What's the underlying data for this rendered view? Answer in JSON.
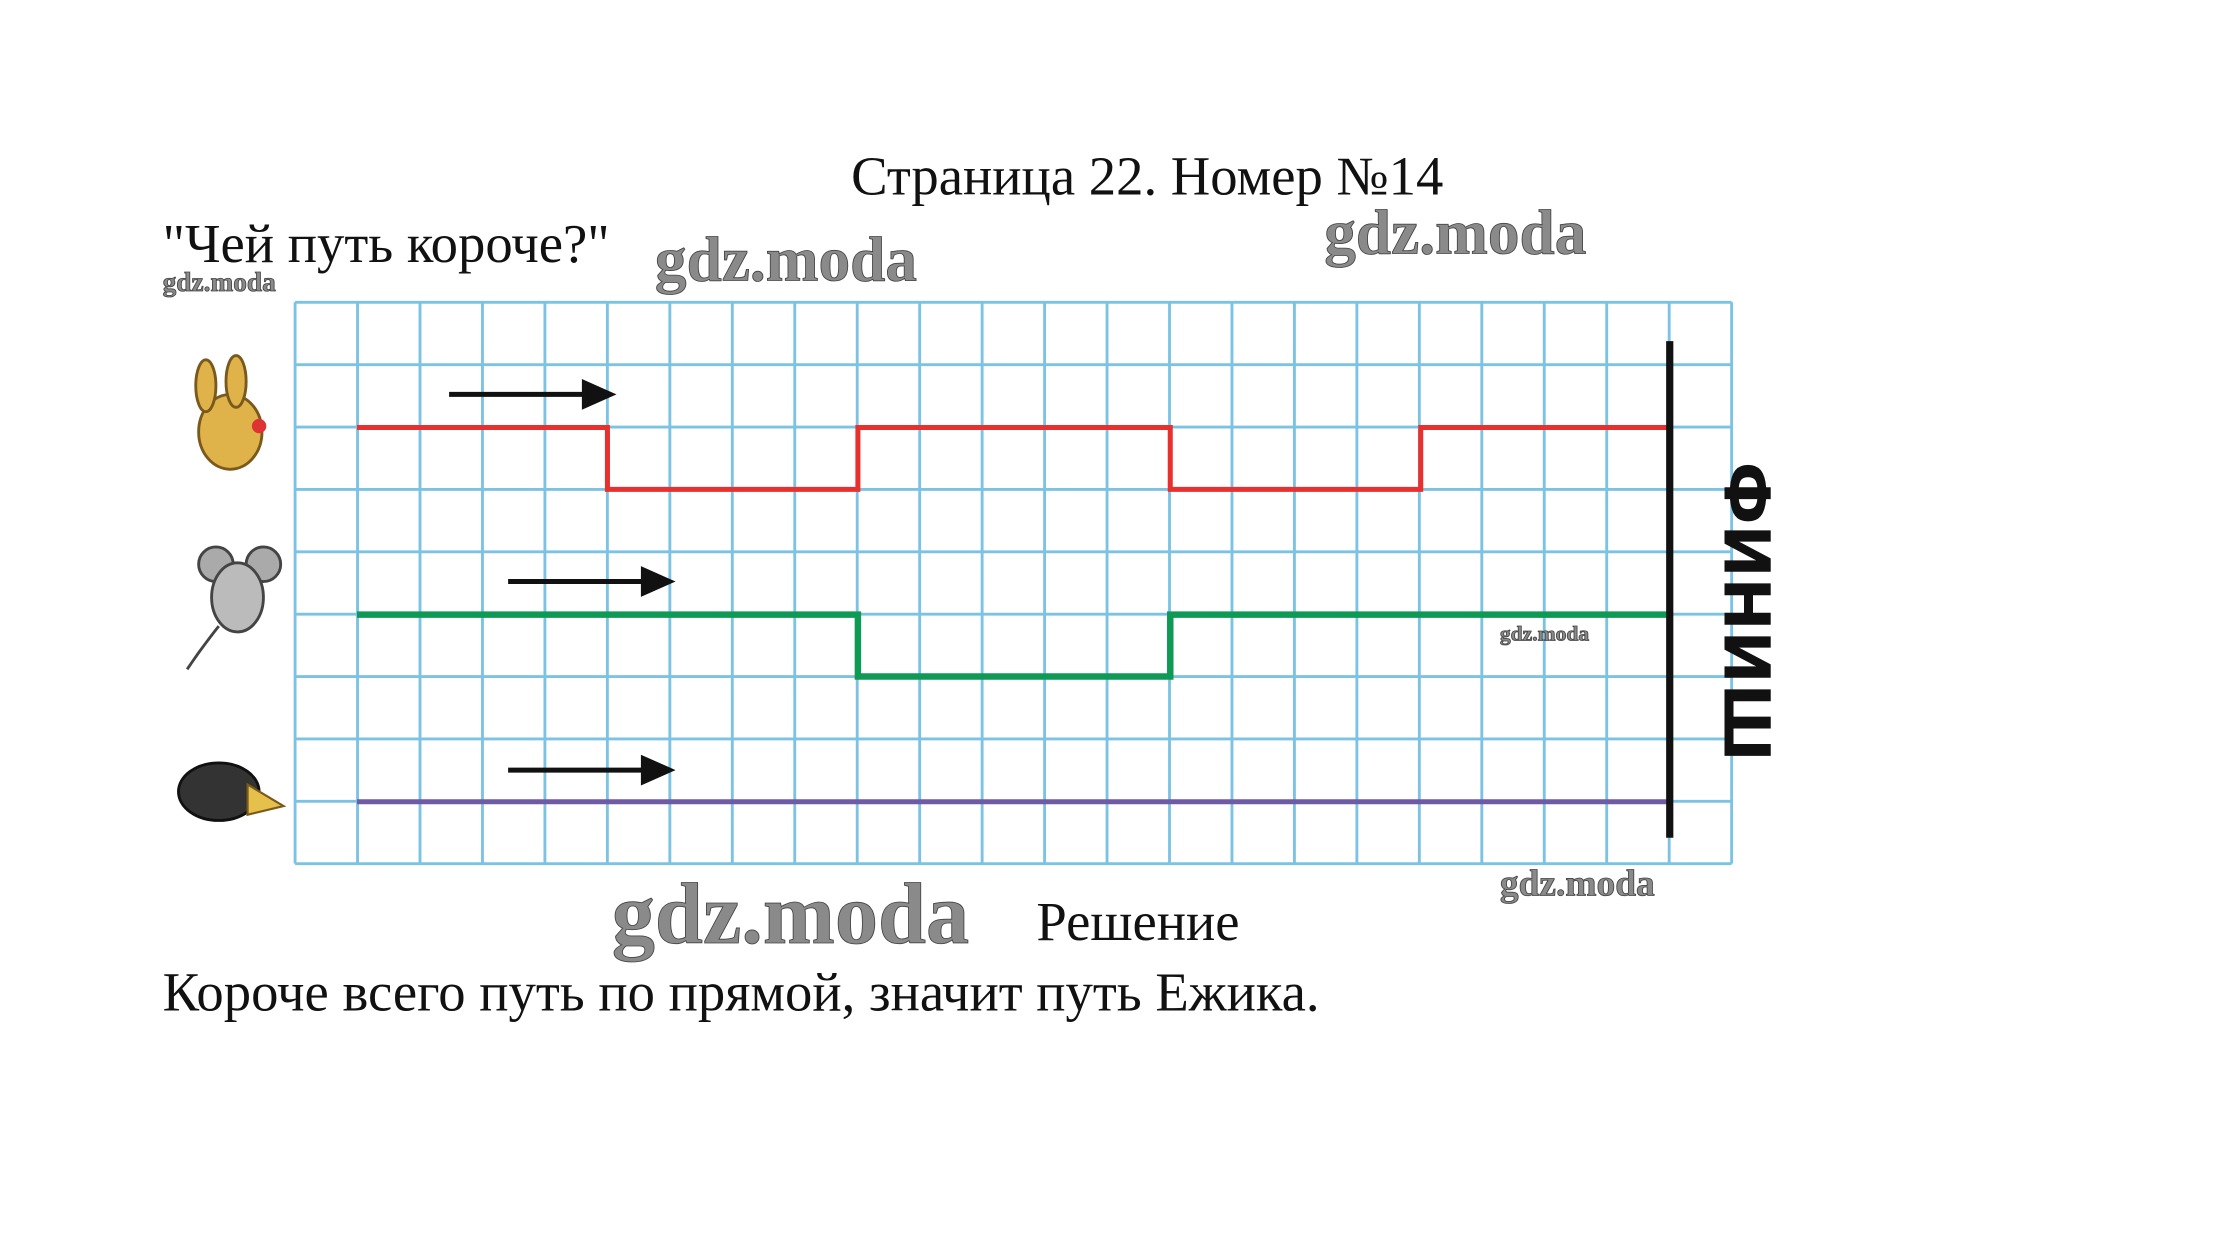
{
  "header": {
    "title": "Страница 22. Номер №14",
    "question": "\"Чей путь короче?\""
  },
  "figure": {
    "finish": "ФИНИШ"
  },
  "solution": {
    "heading": "Решение",
    "answer": "Короче всего путь по прямой, значит путь Ежика."
  },
  "watermarks": [
    "gdz.moda",
    "gdz.moda",
    "gdz.moda",
    "gdz.moda",
    "gdz.moda",
    "gdz.moda"
  ]
}
